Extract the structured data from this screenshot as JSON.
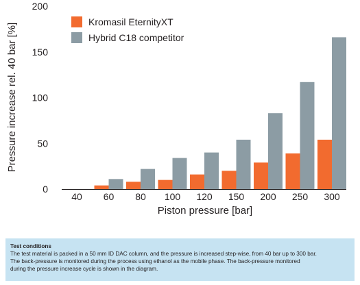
{
  "chart_data": {
    "type": "bar",
    "ylabel": "Pressure increase rel. 40 bar [%]",
    "xlabel": "Piston pressure [bar]",
    "categories": [
      "40",
      "60",
      "80",
      "100",
      "120",
      "150",
      "200",
      "250",
      "300"
    ],
    "ylim": [
      0,
      200
    ],
    "yticks": [
      "0",
      "50",
      "100",
      "150",
      "200"
    ],
    "grid": false,
    "legend_position": "top-left",
    "series": [
      {
        "name": "Kromasil EternityXT",
        "color": "#f26b2f",
        "values": [
          0,
          4,
          8,
          10,
          16,
          20,
          29,
          39,
          54
        ]
      },
      {
        "name": "Hybrid C18 competitor",
        "color": "#8c9ca4",
        "values": [
          0,
          11,
          22,
          34,
          40,
          54,
          83,
          117,
          166
        ]
      }
    ]
  },
  "test_conditions": {
    "title": "Test conditions",
    "lines": [
      "The test material is packed in a 50 mm ID DAC column, and the pressure is increased step-wise, from 40 bar up to 300 bar.",
      "The back-pressure is monitored during the process using ethanol as the mobile phase. The back-pressure monitored",
      "during the pressure increase cycle is shown in the diagram."
    ]
  }
}
